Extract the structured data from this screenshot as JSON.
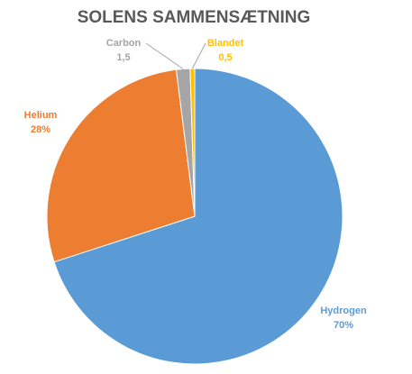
{
  "chart_data": {
    "type": "pie",
    "title": "SOLENS SAMMENSÆTNING",
    "categories": [
      "Hydrogen",
      "Helium",
      "Carbon",
      "Blandet"
    ],
    "values": [
      70,
      28,
      1.5,
      0.5
    ],
    "value_labels": [
      "70%",
      "28%",
      "1,5",
      "0,5"
    ],
    "colors": [
      "#5b9bd5",
      "#ed7d31",
      "#a5a5a5",
      "#ffc000"
    ]
  }
}
